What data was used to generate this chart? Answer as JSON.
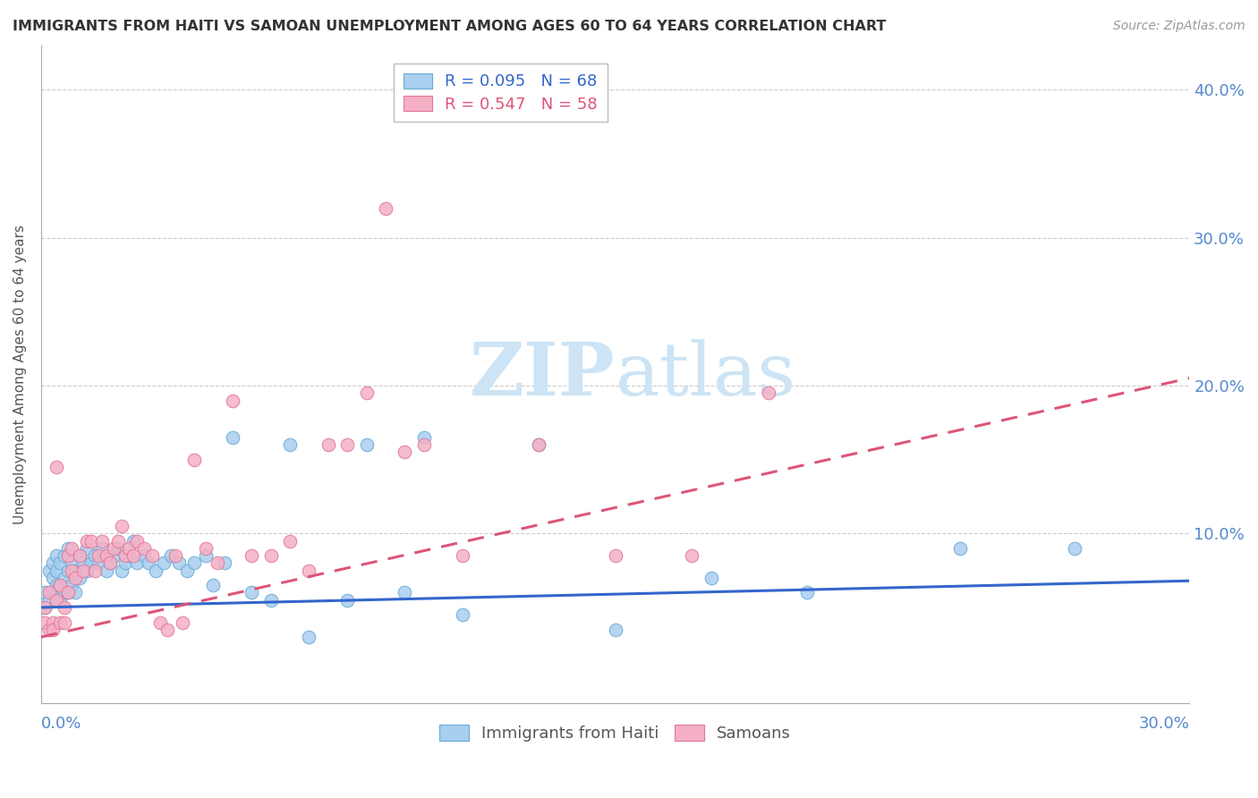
{
  "title": "IMMIGRANTS FROM HAITI VS SAMOAN UNEMPLOYMENT AMONG AGES 60 TO 64 YEARS CORRELATION CHART",
  "source": "Source: ZipAtlas.com",
  "ylabel": "Unemployment Among Ages 60 to 64 years",
  "xlim": [
    0.0,
    0.3
  ],
  "ylim": [
    -0.015,
    0.43
  ],
  "yticks": [
    0.0,
    0.1,
    0.2,
    0.3,
    0.4
  ],
  "ytick_labels": [
    "",
    "10.0%",
    "20.0%",
    "30.0%",
    "40.0%"
  ],
  "xtick_labels_shown": [
    "0.0%",
    "30.0%"
  ],
  "haiti_color": "#a8cef0",
  "haiti_edge_color": "#6aaad2",
  "samoa_color": "#f5b0c5",
  "samoa_edge_color": "#e07898",
  "haiti_R": 0.095,
  "haiti_N": 68,
  "samoa_R": 0.547,
  "samoa_N": 58,
  "haiti_line_color": "#3366cc",
  "samoa_line_color": "#dd5577",
  "grid_color": "#cccccc",
  "title_color": "#333333",
  "axis_color": "#5588cc",
  "watermark_color": "#cce4f5",
  "haiti_line_start_y": 0.05,
  "haiti_line_end_y": 0.068,
  "samoa_line_start_y": 0.03,
  "samoa_line_end_y": 0.205,
  "haiti_scatter_x": [
    0.001,
    0.001,
    0.002,
    0.002,
    0.003,
    0.003,
    0.003,
    0.004,
    0.004,
    0.004,
    0.005,
    0.005,
    0.005,
    0.006,
    0.006,
    0.006,
    0.007,
    0.007,
    0.007,
    0.008,
    0.008,
    0.009,
    0.009,
    0.01,
    0.01,
    0.011,
    0.012,
    0.012,
    0.013,
    0.014,
    0.015,
    0.016,
    0.017,
    0.018,
    0.019,
    0.02,
    0.021,
    0.022,
    0.023,
    0.024,
    0.025,
    0.027,
    0.028,
    0.03,
    0.032,
    0.034,
    0.036,
    0.038,
    0.04,
    0.043,
    0.045,
    0.048,
    0.05,
    0.055,
    0.06,
    0.065,
    0.07,
    0.08,
    0.085,
    0.095,
    0.1,
    0.11,
    0.13,
    0.15,
    0.175,
    0.2,
    0.24,
    0.27
  ],
  "haiti_scatter_y": [
    0.05,
    0.06,
    0.055,
    0.075,
    0.06,
    0.07,
    0.08,
    0.065,
    0.075,
    0.085,
    0.055,
    0.065,
    0.08,
    0.06,
    0.07,
    0.085,
    0.06,
    0.075,
    0.09,
    0.065,
    0.08,
    0.06,
    0.075,
    0.07,
    0.085,
    0.08,
    0.075,
    0.09,
    0.08,
    0.085,
    0.08,
    0.09,
    0.075,
    0.08,
    0.085,
    0.09,
    0.075,
    0.08,
    0.085,
    0.095,
    0.08,
    0.085,
    0.08,
    0.075,
    0.08,
    0.085,
    0.08,
    0.075,
    0.08,
    0.085,
    0.065,
    0.08,
    0.165,
    0.06,
    0.055,
    0.16,
    0.03,
    0.055,
    0.16,
    0.06,
    0.165,
    0.045,
    0.16,
    0.035,
    0.07,
    0.06,
    0.09,
    0.09
  ],
  "samoa_scatter_x": [
    0.001,
    0.001,
    0.002,
    0.002,
    0.003,
    0.003,
    0.004,
    0.004,
    0.005,
    0.005,
    0.006,
    0.006,
    0.007,
    0.007,
    0.008,
    0.008,
    0.009,
    0.01,
    0.011,
    0.012,
    0.013,
    0.014,
    0.015,
    0.016,
    0.017,
    0.018,
    0.019,
    0.02,
    0.021,
    0.022,
    0.023,
    0.024,
    0.025,
    0.027,
    0.029,
    0.031,
    0.033,
    0.035,
    0.037,
    0.04,
    0.043,
    0.046,
    0.05,
    0.055,
    0.06,
    0.065,
    0.07,
    0.075,
    0.08,
    0.085,
    0.09,
    0.095,
    0.1,
    0.11,
    0.13,
    0.15,
    0.17,
    0.19
  ],
  "samoa_scatter_y": [
    0.05,
    0.04,
    0.06,
    0.035,
    0.04,
    0.035,
    0.145,
    0.055,
    0.065,
    0.04,
    0.05,
    0.04,
    0.06,
    0.085,
    0.09,
    0.075,
    0.07,
    0.085,
    0.075,
    0.095,
    0.095,
    0.075,
    0.085,
    0.095,
    0.085,
    0.08,
    0.09,
    0.095,
    0.105,
    0.085,
    0.09,
    0.085,
    0.095,
    0.09,
    0.085,
    0.04,
    0.035,
    0.085,
    0.04,
    0.15,
    0.09,
    0.08,
    0.19,
    0.085,
    0.085,
    0.095,
    0.075,
    0.16,
    0.16,
    0.195,
    0.32,
    0.155,
    0.16,
    0.085,
    0.16,
    0.085,
    0.085,
    0.195
  ]
}
